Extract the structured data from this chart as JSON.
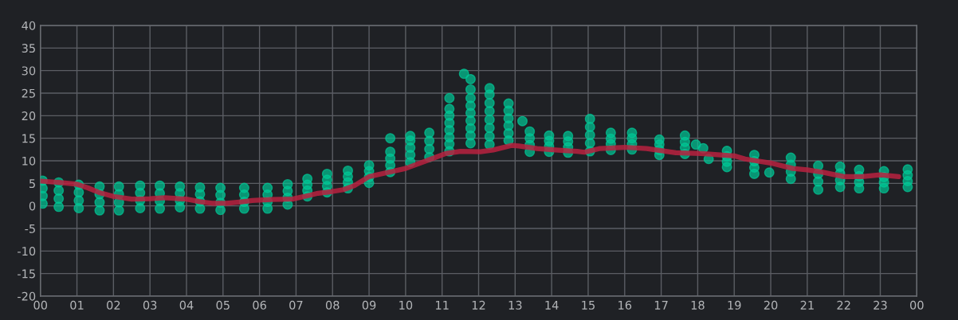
{
  "chart_data": {
    "type": "scatter",
    "grid": true,
    "xlim": [
      0,
      24
    ],
    "xticks": [
      {
        "value": 0,
        "label": "00"
      },
      {
        "value": 1,
        "label": "01"
      },
      {
        "value": 2,
        "label": "02"
      },
      {
        "value": 3,
        "label": "03"
      },
      {
        "value": 4,
        "label": "04"
      },
      {
        "value": 5,
        "label": "05"
      },
      {
        "value": 6,
        "label": "06"
      },
      {
        "value": 7,
        "label": "07"
      },
      {
        "value": 8,
        "label": "08"
      },
      {
        "value": 9,
        "label": "09"
      },
      {
        "value": 10,
        "label": "10"
      },
      {
        "value": 11,
        "label": "11"
      },
      {
        "value": 12,
        "label": "12"
      },
      {
        "value": 13,
        "label": "13"
      },
      {
        "value": 14,
        "label": "14"
      },
      {
        "value": 15,
        "label": "15"
      },
      {
        "value": 16,
        "label": "16"
      },
      {
        "value": 17,
        "label": "17"
      },
      {
        "value": 18,
        "label": "18"
      },
      {
        "value": 19,
        "label": "19"
      },
      {
        "value": 20,
        "label": "20"
      },
      {
        "value": 21,
        "label": "21"
      },
      {
        "value": 22,
        "label": "22"
      },
      {
        "value": 23,
        "label": "23"
      },
      {
        "value": 24,
        "label": "00"
      }
    ],
    "ylim": [
      -20,
      40
    ],
    "yticks": [
      -20,
      -15,
      -10,
      -5,
      0,
      5,
      10,
      15,
      20,
      25,
      30,
      35,
      40
    ],
    "series": [
      {
        "color": "#00c896",
        "marker": "circle",
        "x": [
          0.06,
          0.06,
          0.06,
          0.06,
          0.5,
          0.5,
          0.5,
          0.5,
          1.05,
          1.05,
          1.05,
          1.05,
          1.62,
          1.62,
          1.62,
          1.62,
          2.15,
          2.15,
          2.15,
          2.15,
          2.73,
          2.73,
          2.73,
          2.73,
          3.27,
          3.27,
          3.27,
          3.27,
          3.82,
          3.82,
          3.82,
          3.82,
          4.37,
          4.37,
          4.37,
          4.37,
          4.93,
          4.93,
          4.93,
          4.93,
          5.58,
          5.58,
          5.58,
          5.58,
          6.22,
          6.22,
          6.22,
          6.22,
          6.77,
          6.77,
          6.77,
          6.77,
          7.31,
          7.31,
          7.31,
          7.31,
          7.85,
          7.85,
          7.85,
          7.85,
          8.42,
          8.42,
          8.42,
          8.42,
          9.0,
          9.0,
          9.0,
          9.0,
          9.58,
          9.58,
          9.58,
          9.58,
          9.58,
          10.13,
          10.13,
          10.13,
          10.13,
          10.13,
          10.65,
          10.65,
          10.65,
          10.65,
          11.2,
          11.2,
          11.2,
          11.2,
          11.2,
          11.2,
          11.2,
          11.2,
          11.78,
          11.78,
          11.78,
          11.78,
          11.78,
          11.78,
          11.78,
          11.78,
          11.78,
          11.6,
          12.3,
          12.3,
          12.3,
          12.3,
          12.3,
          12.3,
          12.3,
          12.3,
          12.82,
          12.82,
          12.82,
          12.82,
          12.82,
          12.82,
          13.2,
          13.4,
          13.4,
          13.4,
          13.4,
          13.93,
          13.93,
          13.93,
          13.93,
          14.45,
          14.45,
          14.45,
          14.45,
          15.05,
          15.05,
          15.05,
          15.05,
          15.05,
          15.62,
          15.62,
          15.62,
          15.62,
          16.2,
          16.2,
          16.2,
          16.2,
          16.95,
          16.95,
          16.95,
          16.95,
          17.65,
          17.65,
          17.65,
          17.65,
          17.95,
          18.15,
          18.3,
          18.8,
          18.8,
          18.8,
          18.8,
          19.55,
          19.55,
          19.55,
          19.55,
          19.96,
          20.55,
          20.55,
          20.55,
          20.55,
          21.3,
          21.3,
          21.3,
          21.3,
          21.9,
          21.9,
          21.9,
          21.9,
          22.42,
          22.42,
          22.42,
          22.42,
          23.1,
          23.1,
          23.1,
          23.1,
          23.75,
          23.75,
          23.75,
          23.75
        ],
        "values": [
          0.5,
          2.2,
          3.9,
          5.6,
          -0.2,
          1.6,
          3.4,
          5.2,
          -0.5,
          1.2,
          3.0,
          4.7,
          -1.0,
          0.8,
          2.6,
          4.3,
          -1.0,
          0.8,
          2.6,
          4.3,
          -0.5,
          1.2,
          2.9,
          4.5,
          -0.6,
          1.1,
          2.8,
          4.5,
          -0.3,
          1.2,
          2.8,
          4.3,
          -0.6,
          1.0,
          2.6,
          4.1,
          -0.9,
          0.7,
          2.4,
          4.0,
          -0.6,
          0.9,
          2.5,
          4.0,
          -0.6,
          0.9,
          2.5,
          4.0,
          0.3,
          1.8,
          3.3,
          4.8,
          2.1,
          3.4,
          4.7,
          6.0,
          3.0,
          4.4,
          5.8,
          7.1,
          3.9,
          5.2,
          6.5,
          7.8,
          5.1,
          6.4,
          7.7,
          9.0,
          7.5,
          9.0,
          10.5,
          12.0,
          15.0,
          9.7,
          11.3,
          12.9,
          14.5,
          15.5,
          10.8,
          12.6,
          14.4,
          16.2,
          12.1,
          13.7,
          15.2,
          16.8,
          18.4,
          20.0,
          21.5,
          23.9,
          13.9,
          15.6,
          17.2,
          18.9,
          20.6,
          22.2,
          23.9,
          25.8,
          28.1,
          29.3,
          13.6,
          15.4,
          17.3,
          19.1,
          21.0,
          22.8,
          24.7,
          26.1,
          14.5,
          16.1,
          17.8,
          19.4,
          21.1,
          22.7,
          18.8,
          12.0,
          13.5,
          15.0,
          16.5,
          12.0,
          13.2,
          14.4,
          15.6,
          11.8,
          13.0,
          14.3,
          15.5,
          12.1,
          13.9,
          15.7,
          17.5,
          19.3,
          12.4,
          13.7,
          14.9,
          16.2,
          12.5,
          13.7,
          15.0,
          16.2,
          11.3,
          12.4,
          13.6,
          14.7,
          11.5,
          12.9,
          14.2,
          15.6,
          13.6,
          12.8,
          10.4,
          8.6,
          9.8,
          11.0,
          12.2,
          7.1,
          8.5,
          9.9,
          11.3,
          7.4,
          6.0,
          7.6,
          9.1,
          10.7,
          3.6,
          5.4,
          7.1,
          8.9,
          4.2,
          5.7,
          7.2,
          8.7,
          3.9,
          5.3,
          6.6,
          8.0,
          3.9,
          5.2,
          6.4,
          7.7,
          4.2,
          5.5,
          6.8,
          8.1
        ]
      },
      {
        "type": "line",
        "color": "#b8213f",
        "marker": "none",
        "line_style": "solid",
        "x": [
          0,
          0.5,
          1.0,
          1.3,
          1.6,
          2.0,
          2.5,
          3.0,
          3.4,
          4.0,
          4.4,
          4.7,
          5.1,
          5.5,
          5.8,
          6.3,
          6.9,
          7.4,
          7.6,
          8.0,
          8.3,
          8.6,
          9.0,
          9.5,
          10.0,
          10.7,
          11.1,
          11.5,
          12.05,
          12.4,
          12.9,
          13.1,
          13.6,
          14.1,
          14.7,
          14.9,
          15.3,
          16.0,
          16.6,
          17.4,
          18.1,
          19.0,
          19.3,
          20.0,
          20.6,
          21.0,
          21.4,
          22.0,
          22.5,
          23.0,
          23.5
        ],
        "values": [
          5.5,
          5.2,
          4.8,
          4.0,
          3.0,
          2.1,
          1.5,
          1.6,
          1.8,
          1.5,
          0.9,
          0.6,
          0.6,
          0.9,
          1.2,
          1.4,
          1.5,
          2.4,
          2.8,
          3.2,
          3.6,
          4.5,
          6.5,
          7.4,
          8.3,
          10.4,
          11.6,
          12.1,
          12.0,
          12.4,
          13.4,
          13.3,
          12.7,
          12.4,
          12.1,
          11.9,
          12.7,
          13.0,
          12.7,
          11.8,
          11.6,
          11.1,
          10.4,
          9.5,
          8.3,
          8.0,
          7.5,
          6.5,
          6.5,
          6.9,
          6.5
        ]
      }
    ]
  }
}
